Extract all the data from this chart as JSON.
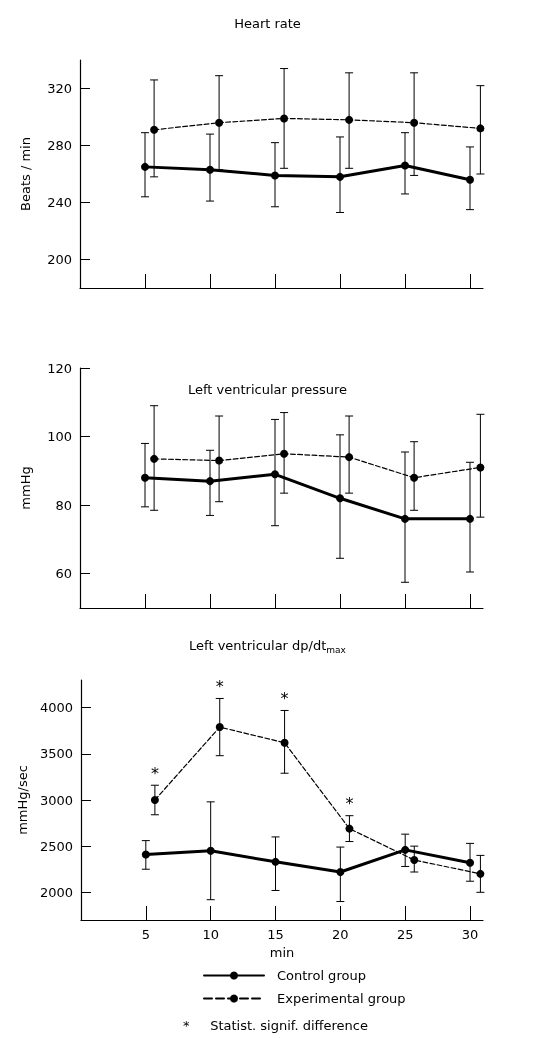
{
  "chart_data": [
    {
      "type": "line",
      "title": "Heart rate",
      "ylabel": "Beats / min",
      "xlim": [
        0,
        31
      ],
      "xticks": [
        5,
        10,
        15,
        20,
        25,
        30
      ],
      "ylim": [
        180,
        340
      ],
      "yticks": [
        200,
        240,
        280,
        320
      ],
      "tick_labels": "y",
      "grid": false,
      "legend": false,
      "marker": "circle",
      "series": [
        {
          "color": "#000000",
          "line_style": "solid",
          "x": [
            5,
            10,
            15,
            20,
            25,
            30
          ],
          "values": [
            265,
            263,
            259,
            258,
            266,
            256
          ],
          "errors": [
            [
              244,
              289
            ],
            [
              241,
              288
            ],
            [
              237,
              282
            ],
            [
              233,
              286
            ],
            [
              246,
              289
            ],
            [
              235,
              279
            ]
          ]
        },
        {
          "color": "#000000",
          "line_style": "dashed",
          "x": [
            5.7,
            10.7,
            15.7,
            20.7,
            25.7,
            30.8
          ],
          "values": [
            291,
            296,
            299,
            298,
            296,
            292
          ],
          "errors": [
            [
              258,
              326
            ],
            [
              263,
              329
            ],
            [
              264,
              334
            ],
            [
              264,
              331
            ],
            [
              259,
              331
            ],
            [
              260,
              322
            ]
          ]
        }
      ]
    },
    {
      "type": "line",
      "title": "Left ventricular pressure",
      "ylabel": "mmHg",
      "xlim": [
        0,
        31
      ],
      "xticks": [
        5,
        10,
        15,
        20,
        25,
        30
      ],
      "ylim": [
        50,
        120
      ],
      "yticks": [
        60,
        80,
        100,
        120
      ],
      "tick_labels": "y",
      "grid": false,
      "legend": false,
      "marker": "circle",
      "series": [
        {
          "color": "#000000",
          "line_style": "solid",
          "x": [
            5,
            10,
            15,
            20,
            25,
            30
          ],
          "values": [
            88,
            87,
            89,
            82,
            76,
            76
          ],
          "errors": [
            [
              79.5,
              98
            ],
            [
              77,
              96
            ],
            [
              74,
              105
            ],
            [
              64.5,
              100.5
            ],
            [
              57.5,
              95.5
            ],
            [
              60.5,
              92.5
            ]
          ]
        },
        {
          "color": "#000000",
          "line_style": "dashed",
          "x": [
            5.7,
            10.7,
            15.7,
            20.7,
            25.7,
            30.8
          ],
          "values": [
            93.5,
            93,
            95,
            94,
            88,
            91
          ],
          "errors": [
            [
              78.5,
              109
            ],
            [
              81,
              106
            ],
            [
              83.5,
              107
            ],
            [
              83.5,
              106
            ],
            [
              78.5,
              98.5
            ],
            [
              76.5,
              106.5
            ]
          ]
        }
      ]
    },
    {
      "type": "line",
      "title": "Left ventricular dp/dt$_{max}$",
      "xlabel": "min",
      "ylabel": "mmHg/sec",
      "xlim": [
        0,
        31
      ],
      "xticks": [
        5,
        10,
        15,
        20,
        25,
        30
      ],
      "ylim": [
        1700,
        4300
      ],
      "yticks": [
        2000,
        2500,
        3000,
        3500,
        4000
      ],
      "grid": false,
      "legend": "bottom",
      "marker": "circle",
      "series": [
        {
          "name": "Control group",
          "color": "#000000",
          "line_style": "solid",
          "x": [
            5,
            10,
            15,
            20,
            25,
            30
          ],
          "values": [
            2410,
            2450,
            2330,
            2220,
            2460,
            2320
          ],
          "errors": [
            [
              2250,
              2560
            ],
            [
              1920,
              2980
            ],
            [
              2020,
              2600
            ],
            [
              1900,
              2490
            ],
            [
              2280,
              2630
            ],
            [
              2120,
              2530
            ]
          ]
        },
        {
          "name": "Experimental group",
          "color": "#000000",
          "line_style": "dashed",
          "x": [
            5.7,
            10.7,
            15.7,
            20.7,
            25.7,
            30.8
          ],
          "values": [
            3000,
            3790,
            3620,
            2690,
            2350,
            2200
          ],
          "errors": [
            [
              2840,
              3160
            ],
            [
              3480,
              4100
            ],
            [
              3290,
              3970
            ],
            [
              2550,
              2830
            ],
            [
              2220,
              2500
            ],
            [
              2000,
              2400
            ]
          ]
        }
      ],
      "annotations": [
        {
          "text": "*",
          "x": 5.7,
          "y": 3000
        },
        {
          "text": "*",
          "x": 10.7,
          "y": 3790
        },
        {
          "text": "*",
          "x": 15.7,
          "y": 3620
        },
        {
          "text": "*",
          "x": 20.7,
          "y": 2690
        },
        "*     Statist. signif. difference"
      ]
    }
  ]
}
